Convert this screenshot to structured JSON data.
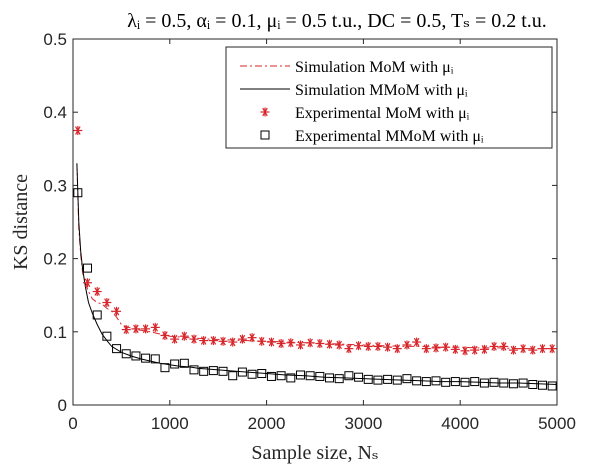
{
  "chart_data": {
    "type": "scatter",
    "title": "λᵢ = 0.5, αᵢ = 0.1, μᵢ = 0.5 t.u., DC = 0.5, Tₛ = 0.2 t.u.",
    "xlabel": "Sample size, Nₛ",
    "ylabel": "KS distance",
    "xlim": [
      0,
      5000
    ],
    "ylim": [
      0,
      0.5
    ],
    "xticks": [
      0,
      1000,
      2000,
      3000,
      4000,
      5000
    ],
    "yticks": [
      0,
      0.1,
      0.2,
      0.3,
      0.4,
      0.5
    ],
    "xtick_labels": [
      "0",
      "1000",
      "2000",
      "3000",
      "4000",
      "5000"
    ],
    "ytick_labels": [
      "0",
      "0.1",
      "0.2",
      "0.3",
      "0.4",
      "0.5"
    ],
    "grid": false,
    "legend_position": "top-right",
    "series": [
      {
        "name": "Simulation MoM with μᵢ",
        "kind": "line",
        "style": "dash-dot",
        "color": "#d7262b",
        "x": [
          40,
          60,
          80,
          100,
          130,
          160,
          200,
          250,
          300,
          350,
          400,
          450,
          500,
          550,
          600,
          700,
          800,
          900,
          1000,
          1200,
          1400,
          1600,
          1800,
          2000,
          2200,
          2400,
          2600,
          2800,
          3000,
          3200,
          3400,
          3600,
          3800,
          4000,
          4200,
          4400,
          4600,
          4800,
          5000
        ],
        "y": [
          0.33,
          0.24,
          0.205,
          0.18,
          0.165,
          0.155,
          0.145,
          0.14,
          0.138,
          0.132,
          0.128,
          0.12,
          0.11,
          0.107,
          0.105,
          0.102,
          0.1,
          0.097,
          0.094,
          0.092,
          0.09,
          0.089,
          0.088,
          0.087,
          0.086,
          0.085,
          0.084,
          0.083,
          0.082,
          0.081,
          0.08,
          0.08,
          0.079,
          0.079,
          0.078,
          0.078,
          0.077,
          0.077,
          0.077
        ]
      },
      {
        "name": "Simulation MMoM with μᵢ",
        "kind": "line",
        "style": "solid",
        "color": "#000000",
        "x": [
          40,
          60,
          80,
          100,
          130,
          160,
          200,
          250,
          300,
          350,
          400,
          500,
          600,
          700,
          800,
          900,
          1000,
          1100,
          1200,
          1300,
          1400,
          1500,
          1600,
          1800,
          2000,
          2200,
          2400,
          2600,
          2800,
          3000,
          3200,
          3400,
          3600,
          3800,
          4000,
          4200,
          4400,
          4600,
          4800,
          5000
        ],
        "y": [
          0.33,
          0.25,
          0.21,
          0.185,
          0.16,
          0.14,
          0.125,
          0.11,
          0.097,
          0.088,
          0.08,
          0.072,
          0.067,
          0.063,
          0.06,
          0.057,
          0.055,
          0.053,
          0.052,
          0.05,
          0.049,
          0.048,
          0.047,
          0.045,
          0.043,
          0.041,
          0.04,
          0.038,
          0.037,
          0.036,
          0.035,
          0.034,
          0.033,
          0.032,
          0.032,
          0.031,
          0.03,
          0.03,
          0.029,
          0.028
        ]
      },
      {
        "name": "Experimental MoM with μᵢ",
        "kind": "scatter",
        "marker": "asterisk",
        "color": "#d7262b",
        "x": [
          50,
          150,
          250,
          350,
          450,
          550,
          650,
          750,
          850,
          950,
          1050,
          1150,
          1250,
          1350,
          1450,
          1550,
          1650,
          1750,
          1850,
          1950,
          2050,
          2150,
          2250,
          2350,
          2450,
          2550,
          2650,
          2750,
          2850,
          2950,
          3050,
          3150,
          3250,
          3350,
          3450,
          3550,
          3650,
          3750,
          3850,
          3950,
          4050,
          4150,
          4250,
          4350,
          4450,
          4550,
          4650,
          4750,
          4850,
          4950
        ],
        "y": [
          0.375,
          0.167,
          0.155,
          0.14,
          0.128,
          0.103,
          0.104,
          0.104,
          0.106,
          0.095,
          0.09,
          0.094,
          0.09,
          0.088,
          0.088,
          0.087,
          0.086,
          0.09,
          0.092,
          0.087,
          0.086,
          0.084,
          0.085,
          0.082,
          0.085,
          0.084,
          0.083,
          0.082,
          0.077,
          0.081,
          0.08,
          0.08,
          0.079,
          0.077,
          0.082,
          0.086,
          0.077,
          0.078,
          0.079,
          0.076,
          0.074,
          0.075,
          0.076,
          0.08,
          0.08,
          0.075,
          0.077,
          0.075,
          0.077,
          0.077
        ]
      },
      {
        "name": "Experimental MMoM with μᵢ",
        "kind": "scatter",
        "marker": "square",
        "color": "#000000",
        "x": [
          50,
          150,
          250,
          350,
          450,
          550,
          650,
          750,
          850,
          950,
          1050,
          1150,
          1250,
          1350,
          1450,
          1550,
          1650,
          1750,
          1850,
          1950,
          2050,
          2150,
          2250,
          2350,
          2450,
          2550,
          2650,
          2750,
          2850,
          2950,
          3050,
          3150,
          3250,
          3350,
          3450,
          3550,
          3650,
          3750,
          3850,
          3950,
          4050,
          4150,
          4250,
          4350,
          4450,
          4550,
          4650,
          4750,
          4850,
          4950
        ],
        "y": [
          0.29,
          0.187,
          0.123,
          0.094,
          0.077,
          0.07,
          0.067,
          0.064,
          0.063,
          0.051,
          0.056,
          0.057,
          0.048,
          0.046,
          0.047,
          0.046,
          0.04,
          0.045,
          0.042,
          0.043,
          0.039,
          0.04,
          0.037,
          0.041,
          0.04,
          0.039,
          0.037,
          0.036,
          0.04,
          0.038,
          0.035,
          0.034,
          0.035,
          0.034,
          0.036,
          0.033,
          0.032,
          0.033,
          0.031,
          0.032,
          0.031,
          0.032,
          0.03,
          0.031,
          0.03,
          0.029,
          0.03,
          0.028,
          0.027,
          0.026
        ]
      }
    ]
  }
}
